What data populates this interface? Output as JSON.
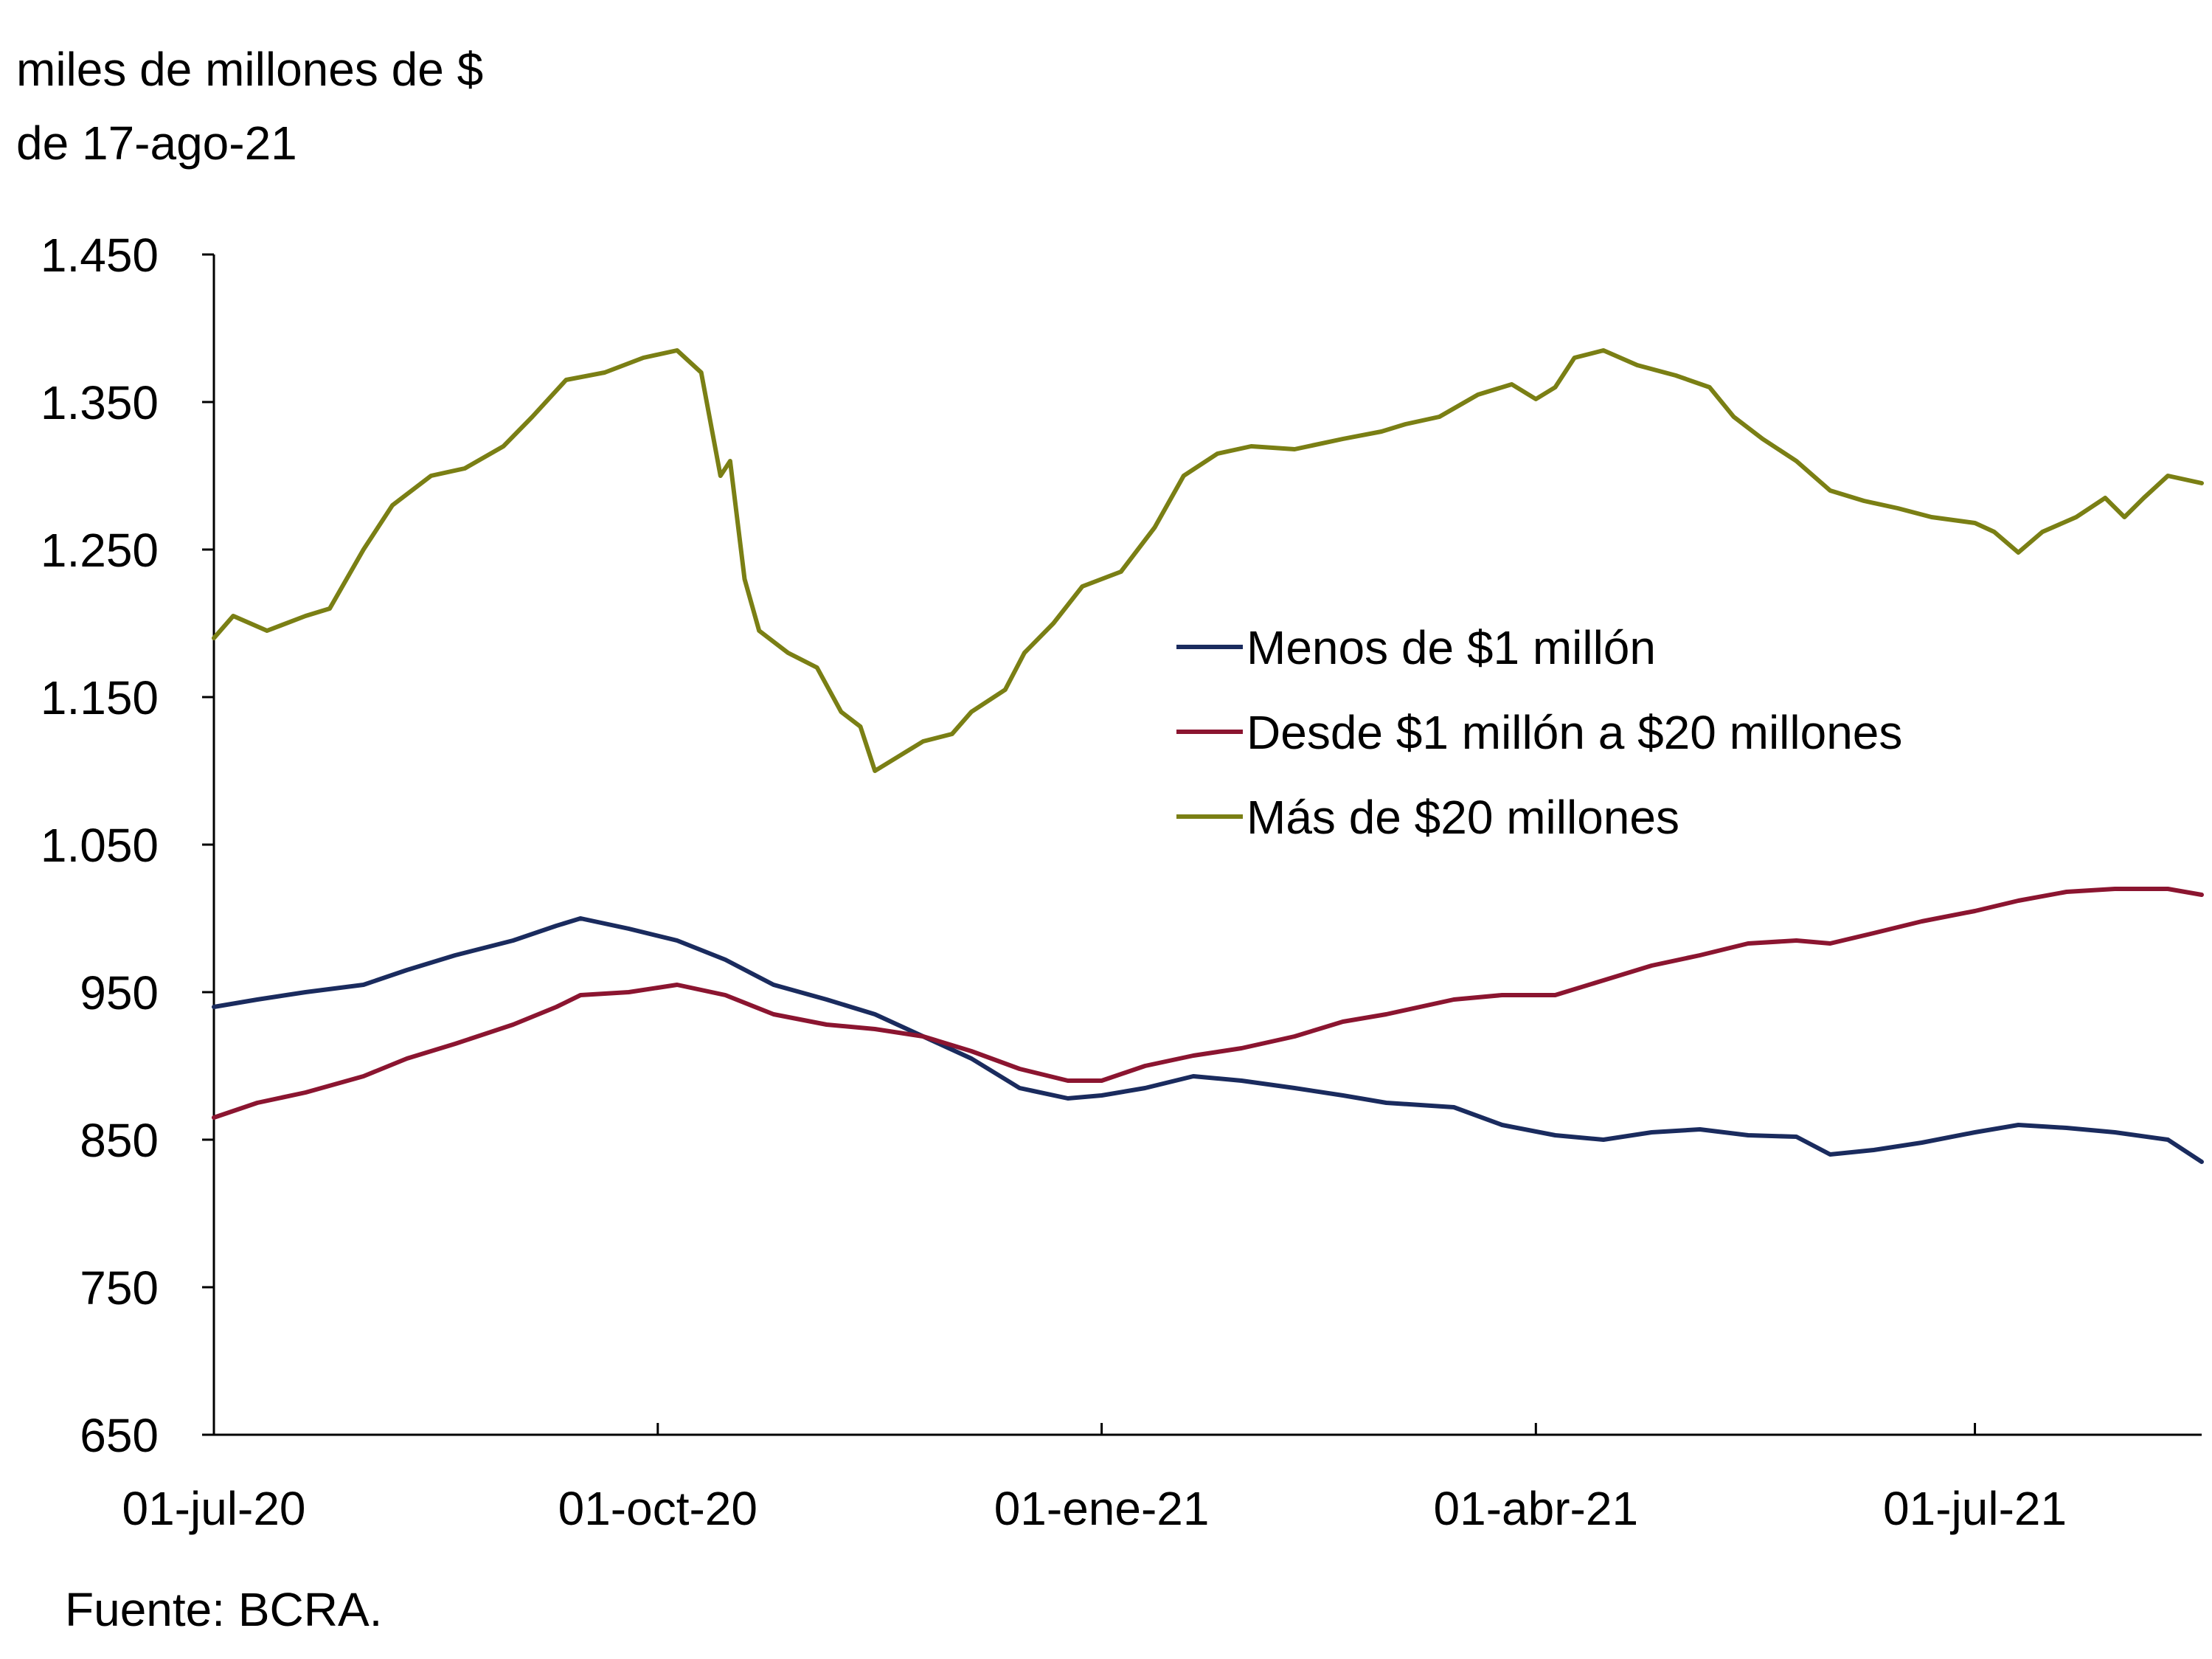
{
  "colors": {
    "menos": "#1a2b5e",
    "desde": "#8b1530",
    "mas": "#7a7f14",
    "axis": "#000000"
  },
  "source": "Fuente: BCRA.",
  "chart_data": {
    "type": "line",
    "ylabel_lines": [
      "miles de millones de $",
      "de 17-ago-21"
    ],
    "title": "",
    "ylim": [
      650,
      1450
    ],
    "yticks": [
      1450,
      1350,
      1250,
      1150,
      1050,
      950,
      850,
      750,
      650
    ],
    "ytick_labels": [
      "1.450",
      "1.350",
      "1.250",
      "1.150",
      "1.050",
      "950",
      "850",
      "750",
      "650"
    ],
    "xlim": [
      "2020-07-01",
      "2021-08-17"
    ],
    "xticks": [
      "2020-07-01",
      "2020-10-01",
      "2021-01-01",
      "2021-04-01",
      "2021-07-01"
    ],
    "xtick_labels": [
      "01-jul-20",
      "01-oct-20",
      "01-ene-21",
      "01-abr-21",
      "01-jul-21"
    ],
    "grid": false,
    "legend_position": "center-right",
    "series": [
      {
        "name": "Menos de $1 millón",
        "color_key": "menos",
        "points": [
          [
            "2020-07-01",
            940
          ],
          [
            "2020-07-10",
            945
          ],
          [
            "2020-07-20",
            950
          ],
          [
            "2020-08-01",
            955
          ],
          [
            "2020-08-10",
            965
          ],
          [
            "2020-08-20",
            975
          ],
          [
            "2020-09-01",
            985
          ],
          [
            "2020-09-10",
            995
          ],
          [
            "2020-09-15",
            1000
          ],
          [
            "2020-09-25",
            993
          ],
          [
            "2020-10-05",
            985
          ],
          [
            "2020-10-15",
            972
          ],
          [
            "2020-10-25",
            955
          ],
          [
            "2020-11-05",
            945
          ],
          [
            "2020-11-15",
            935
          ],
          [
            "2020-11-25",
            920
          ],
          [
            "2020-12-05",
            905
          ],
          [
            "2020-12-15",
            885
          ],
          [
            "2020-12-25",
            878
          ],
          [
            "2021-01-01",
            880
          ],
          [
            "2021-01-10",
            885
          ],
          [
            "2021-01-20",
            893
          ],
          [
            "2021-01-30",
            890
          ],
          [
            "2021-02-10",
            885
          ],
          [
            "2021-02-20",
            880
          ],
          [
            "2021-03-01",
            875
          ],
          [
            "2021-03-15",
            872
          ],
          [
            "2021-03-25",
            860
          ],
          [
            "2021-04-05",
            853
          ],
          [
            "2021-04-15",
            850
          ],
          [
            "2021-04-25",
            855
          ],
          [
            "2021-05-05",
            857
          ],
          [
            "2021-05-15",
            853
          ],
          [
            "2021-05-25",
            852
          ],
          [
            "2021-06-01",
            840
          ],
          [
            "2021-06-10",
            843
          ],
          [
            "2021-06-20",
            848
          ],
          [
            "2021-07-01",
            855
          ],
          [
            "2021-07-10",
            860
          ],
          [
            "2021-07-20",
            858
          ],
          [
            "2021-07-30",
            855
          ],
          [
            "2021-08-10",
            850
          ],
          [
            "2021-08-17",
            835
          ]
        ]
      },
      {
        "name": "Desde $1 millón a $20 millones",
        "color_key": "desde",
        "points": [
          [
            "2020-07-01",
            865
          ],
          [
            "2020-07-10",
            875
          ],
          [
            "2020-07-20",
            882
          ],
          [
            "2020-08-01",
            893
          ],
          [
            "2020-08-10",
            905
          ],
          [
            "2020-08-20",
            915
          ],
          [
            "2020-09-01",
            928
          ],
          [
            "2020-09-10",
            940
          ],
          [
            "2020-09-15",
            948
          ],
          [
            "2020-09-25",
            950
          ],
          [
            "2020-10-05",
            955
          ],
          [
            "2020-10-15",
            948
          ],
          [
            "2020-10-25",
            935
          ],
          [
            "2020-11-05",
            928
          ],
          [
            "2020-11-15",
            925
          ],
          [
            "2020-11-25",
            920
          ],
          [
            "2020-12-05",
            910
          ],
          [
            "2020-12-15",
            898
          ],
          [
            "2020-12-25",
            890
          ],
          [
            "2021-01-01",
            890
          ],
          [
            "2021-01-10",
            900
          ],
          [
            "2021-01-20",
            907
          ],
          [
            "2021-01-30",
            912
          ],
          [
            "2021-02-10",
            920
          ],
          [
            "2021-02-20",
            930
          ],
          [
            "2021-03-01",
            935
          ],
          [
            "2021-03-15",
            945
          ],
          [
            "2021-03-25",
            948
          ],
          [
            "2021-04-05",
            948
          ],
          [
            "2021-04-15",
            958
          ],
          [
            "2021-04-25",
            968
          ],
          [
            "2021-05-05",
            975
          ],
          [
            "2021-05-15",
            983
          ],
          [
            "2021-05-25",
            985
          ],
          [
            "2021-06-01",
            983
          ],
          [
            "2021-06-10",
            990
          ],
          [
            "2021-06-20",
            998
          ],
          [
            "2021-07-01",
            1005
          ],
          [
            "2021-07-10",
            1012
          ],
          [
            "2021-07-20",
            1018
          ],
          [
            "2021-07-30",
            1020
          ],
          [
            "2021-08-10",
            1020
          ],
          [
            "2021-08-17",
            1016
          ]
        ]
      },
      {
        "name": "Más de $20 millones",
        "color_key": "mas",
        "points": [
          [
            "2020-07-01",
            1190
          ],
          [
            "2020-07-05",
            1205
          ],
          [
            "2020-07-12",
            1195
          ],
          [
            "2020-07-20",
            1205
          ],
          [
            "2020-07-25",
            1210
          ],
          [
            "2020-08-01",
            1250
          ],
          [
            "2020-08-07",
            1280
          ],
          [
            "2020-08-15",
            1300
          ],
          [
            "2020-08-22",
            1305
          ],
          [
            "2020-08-30",
            1320
          ],
          [
            "2020-09-05",
            1340
          ],
          [
            "2020-09-12",
            1365
          ],
          [
            "2020-09-20",
            1370
          ],
          [
            "2020-09-28",
            1380
          ],
          [
            "2020-10-05",
            1385
          ],
          [
            "2020-10-10",
            1370
          ],
          [
            "2020-10-14",
            1300
          ],
          [
            "2020-10-16",
            1310
          ],
          [
            "2020-10-19",
            1230
          ],
          [
            "2020-10-22",
            1195
          ],
          [
            "2020-10-28",
            1180
          ],
          [
            "2020-11-03",
            1170
          ],
          [
            "2020-11-08",
            1140
          ],
          [
            "2020-11-12",
            1130
          ],
          [
            "2020-11-15",
            1100
          ],
          [
            "2020-11-20",
            1110
          ],
          [
            "2020-11-25",
            1120
          ],
          [
            "2020-12-01",
            1125
          ],
          [
            "2020-12-05",
            1140
          ],
          [
            "2020-12-12",
            1155
          ],
          [
            "2020-12-16",
            1180
          ],
          [
            "2020-12-22",
            1200
          ],
          [
            "2020-12-28",
            1225
          ],
          [
            "2021-01-05",
            1235
          ],
          [
            "2021-01-12",
            1265
          ],
          [
            "2021-01-18",
            1300
          ],
          [
            "2021-01-25",
            1315
          ],
          [
            "2021-02-01",
            1320
          ],
          [
            "2021-02-10",
            1318
          ],
          [
            "2021-02-20",
            1325
          ],
          [
            "2021-02-28",
            1330
          ],
          [
            "2021-03-05",
            1335
          ],
          [
            "2021-03-12",
            1340
          ],
          [
            "2021-03-20",
            1355
          ],
          [
            "2021-03-27",
            1362
          ],
          [
            "2021-04-01",
            1352
          ],
          [
            "2021-04-05",
            1360
          ],
          [
            "2021-04-09",
            1380
          ],
          [
            "2021-04-15",
            1385
          ],
          [
            "2021-04-22",
            1375
          ],
          [
            "2021-04-30",
            1368
          ],
          [
            "2021-05-07",
            1360
          ],
          [
            "2021-05-12",
            1340
          ],
          [
            "2021-05-18",
            1325
          ],
          [
            "2021-05-25",
            1310
          ],
          [
            "2021-06-01",
            1290
          ],
          [
            "2021-06-08",
            1283
          ],
          [
            "2021-06-15",
            1278
          ],
          [
            "2021-06-22",
            1272
          ],
          [
            "2021-07-01",
            1268
          ],
          [
            "2021-07-05",
            1262
          ],
          [
            "2021-07-10",
            1248
          ],
          [
            "2021-07-15",
            1262
          ],
          [
            "2021-07-22",
            1272
          ],
          [
            "2021-07-28",
            1285
          ],
          [
            "2021-08-01",
            1272
          ],
          [
            "2021-08-05",
            1285
          ],
          [
            "2021-08-10",
            1300
          ],
          [
            "2021-08-17",
            1295
          ]
        ]
      }
    ]
  }
}
